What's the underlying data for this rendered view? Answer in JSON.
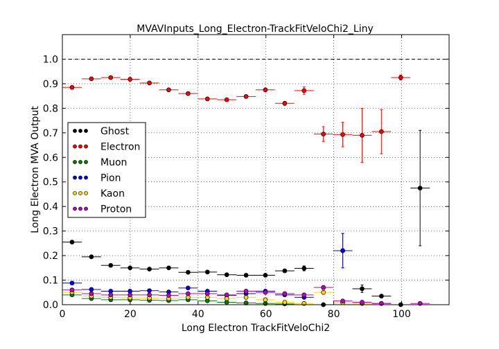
{
  "chart_data": {
    "type": "scatter",
    "title": "MVAVInputs_Long_Electron-TrackFitVeloChi2_Liny",
    "xlabel": "Long Electron TrackFitVeloChi2",
    "ylabel": "Long Electron MVA Output",
    "xlim": [
      0,
      114
    ],
    "ylim": [
      0,
      1.1
    ],
    "xticks": [
      "0",
      "20",
      "40",
      "60",
      "80",
      "100"
    ],
    "yticks": [
      "0.0",
      "0.1",
      "0.2",
      "0.3",
      "0.4",
      "0.5",
      "0.6",
      "0.7",
      "0.8",
      "0.9",
      "1.0"
    ],
    "reference_line": 1.0,
    "grid": true,
    "legend_position": "center-left",
    "bin_half_width": 2.85,
    "series": [
      {
        "name": "Ghost",
        "color": "#000000",
        "points": [
          [
            2.85,
            0.255,
            0.003
          ],
          [
            8.55,
            0.195,
            0.003
          ],
          [
            14.25,
            0.16,
            0.004
          ],
          [
            19.95,
            0.15,
            0.004
          ],
          [
            25.65,
            0.145,
            0.005
          ],
          [
            31.35,
            0.15,
            0.005
          ],
          [
            37.05,
            0.132,
            0.005
          ],
          [
            42.75,
            0.133,
            0.006
          ],
          [
            48.45,
            0.122,
            0.006
          ],
          [
            54.15,
            0.12,
            0.006
          ],
          [
            59.85,
            0.12,
            0.006
          ],
          [
            65.55,
            0.138,
            0.007
          ],
          [
            71.25,
            0.148,
            0.01
          ],
          [
            76.95,
            0.0,
            0.0
          ],
          [
            82.65,
            0.22,
            0.07
          ],
          [
            88.35,
            0.065,
            0.015
          ],
          [
            94.05,
            0.035,
            0.006
          ],
          [
            99.75,
            0.0,
            0.0
          ],
          [
            105.45,
            0.475,
            0.235
          ]
        ]
      },
      {
        "name": "Electron",
        "color": "#ff0000",
        "points": [
          [
            2.85,
            0.885,
            0.005
          ],
          [
            8.55,
            0.92,
            0.005
          ],
          [
            14.25,
            0.925,
            0.005
          ],
          [
            19.95,
            0.918,
            0.005
          ],
          [
            25.65,
            0.903,
            0.005
          ],
          [
            31.35,
            0.875,
            0.005
          ],
          [
            37.05,
            0.86,
            0.005
          ],
          [
            42.75,
            0.838,
            0.005
          ],
          [
            48.45,
            0.835,
            0.005
          ],
          [
            54.15,
            0.848,
            0.005
          ],
          [
            59.85,
            0.875,
            0.006
          ],
          [
            65.55,
            0.82,
            0.008
          ],
          [
            71.25,
            0.872,
            0.015
          ],
          [
            76.95,
            0.695,
            0.03
          ],
          [
            82.65,
            0.693,
            0.05
          ],
          [
            88.35,
            0.69,
            0.11
          ],
          [
            94.05,
            0.705,
            0.09
          ],
          [
            99.75,
            0.925,
            0.01
          ]
        ]
      },
      {
        "name": "Muon",
        "color": "#008000",
        "points": [
          [
            2.85,
            0.04,
            0.002
          ],
          [
            8.55,
            0.025,
            0.002
          ],
          [
            14.25,
            0.02,
            0.002
          ],
          [
            19.95,
            0.02,
            0.002
          ],
          [
            25.65,
            0.018,
            0.002
          ],
          [
            31.35,
            0.017,
            0.002
          ],
          [
            37.05,
            0.02,
            0.002
          ],
          [
            42.75,
            0.016,
            0.002
          ],
          [
            48.45,
            0.01,
            0.002
          ],
          [
            54.15,
            0.007,
            0.002
          ],
          [
            59.85,
            0.005,
            0.002
          ],
          [
            65.55,
            0.003,
            0.002
          ]
        ]
      },
      {
        "name": "Pion",
        "color": "#0000ff",
        "points": [
          [
            2.85,
            0.088,
            0.002
          ],
          [
            8.55,
            0.062,
            0.002
          ],
          [
            14.25,
            0.055,
            0.002
          ],
          [
            19.95,
            0.055,
            0.002
          ],
          [
            25.65,
            0.057,
            0.002
          ],
          [
            31.35,
            0.052,
            0.002
          ],
          [
            37.05,
            0.068,
            0.003
          ],
          [
            42.75,
            0.055,
            0.003
          ],
          [
            48.45,
            0.038,
            0.003
          ],
          [
            54.15,
            0.045,
            0.003
          ],
          [
            59.85,
            0.055,
            0.003
          ],
          [
            65.55,
            0.04,
            0.004
          ],
          [
            71.25,
            0.03,
            0.005
          ],
          [
            82.65,
            0.22,
            0.07
          ],
          [
            94.05,
            0.005,
            0.003
          ]
        ]
      },
      {
        "name": "Kaon",
        "color": "#ffd700",
        "points": [
          [
            2.85,
            0.05,
            0.002
          ],
          [
            8.55,
            0.035,
            0.002
          ],
          [
            14.25,
            0.03,
            0.002
          ],
          [
            19.95,
            0.028,
            0.002
          ],
          [
            25.65,
            0.027,
            0.002
          ],
          [
            31.35,
            0.025,
            0.002
          ],
          [
            37.05,
            0.03,
            0.002
          ],
          [
            42.75,
            0.03,
            0.002
          ],
          [
            48.45,
            0.025,
            0.002
          ],
          [
            54.15,
            0.03,
            0.003
          ],
          [
            59.85,
            0.02,
            0.003
          ],
          [
            65.55,
            0.01,
            0.003
          ],
          [
            71.25,
            0.005,
            0.003
          ],
          [
            76.95,
            0.05,
            0.005
          ],
          [
            82.65,
            0.008,
            0.003
          ],
          [
            88.35,
            0.005,
            0.003
          ]
        ]
      },
      {
        "name": "Proton",
        "color": "#bf00bf",
        "points": [
          [
            2.85,
            0.06,
            0.002
          ],
          [
            8.55,
            0.045,
            0.002
          ],
          [
            14.25,
            0.04,
            0.002
          ],
          [
            19.95,
            0.04,
            0.002
          ],
          [
            25.65,
            0.04,
            0.002
          ],
          [
            31.35,
            0.038,
            0.002
          ],
          [
            37.05,
            0.045,
            0.003
          ],
          [
            42.75,
            0.045,
            0.003
          ],
          [
            48.45,
            0.04,
            0.003
          ],
          [
            54.15,
            0.055,
            0.003
          ],
          [
            59.85,
            0.05,
            0.003
          ],
          [
            65.55,
            0.045,
            0.004
          ],
          [
            71.25,
            0.04,
            0.005
          ],
          [
            76.95,
            0.07,
            0.008
          ],
          [
            82.65,
            0.015,
            0.004
          ],
          [
            88.35,
            0.01,
            0.003
          ],
          [
            94.05,
            0.005,
            0.002
          ],
          [
            105.45,
            0.005,
            0.002
          ]
        ]
      }
    ]
  }
}
